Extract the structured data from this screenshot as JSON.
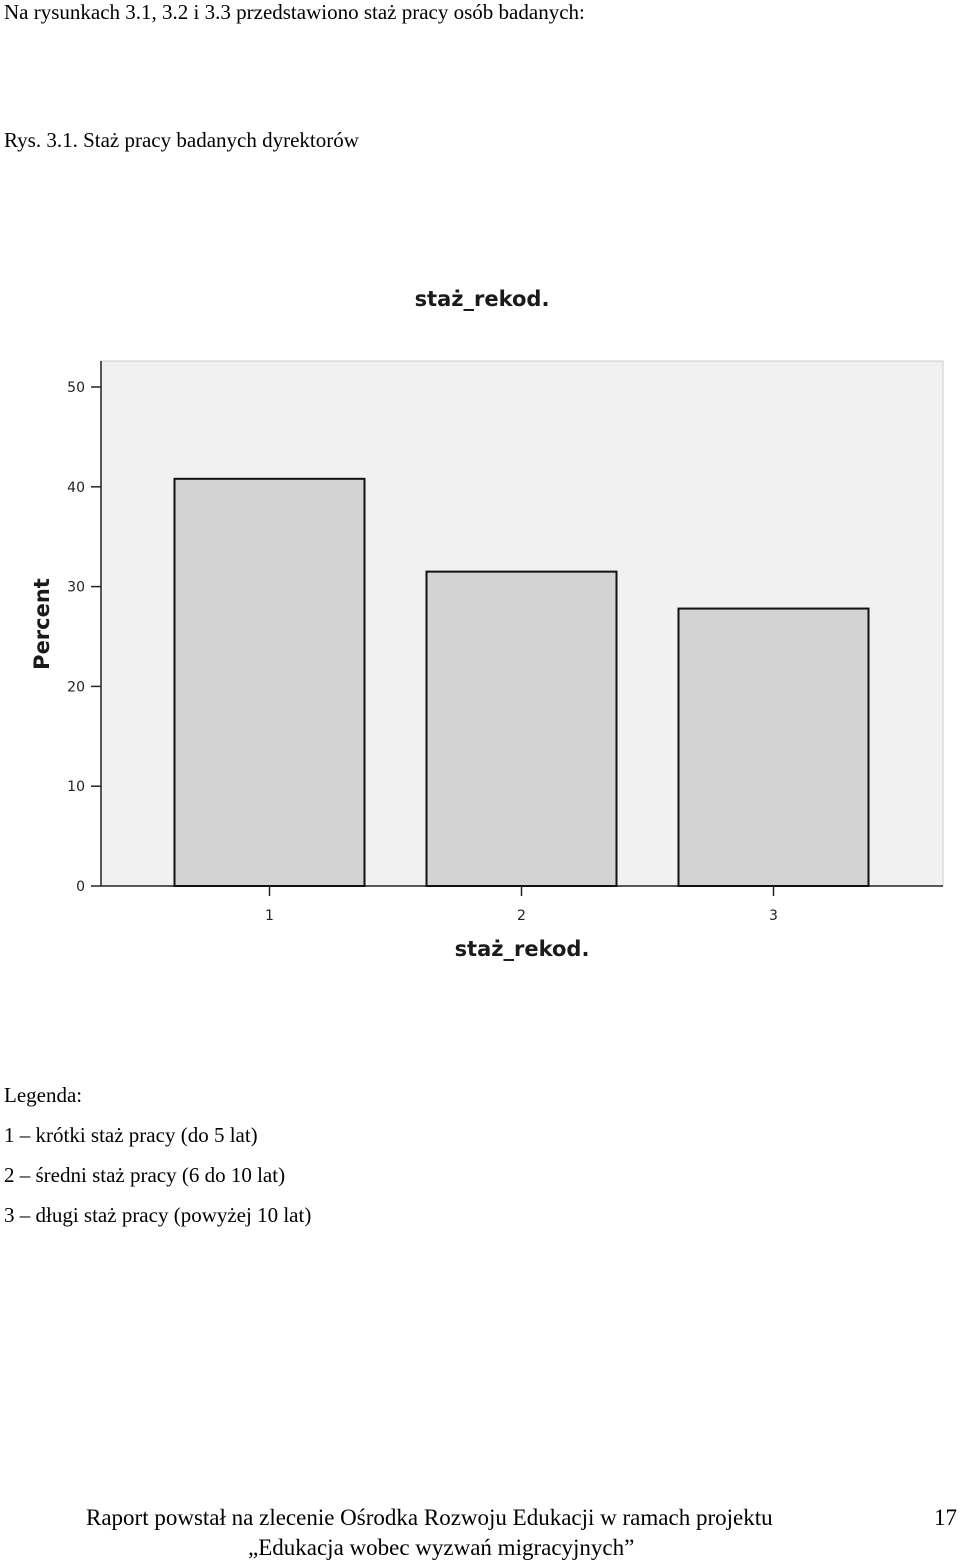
{
  "document": {
    "intro": "Na rysunkach 3.1, 3.2 i 3.3 przedstawiono staż pracy osób badanych:",
    "caption": "Rys. 3.1. Staż pracy badanych dyrektorów"
  },
  "chart_data": {
    "type": "bar",
    "title": "staż_rekod.",
    "xlabel": "staż_rekod.",
    "ylabel": "Percent",
    "categories": [
      "1",
      "2",
      "3"
    ],
    "values": [
      40.8,
      31.5,
      27.8
    ],
    "ylim": [
      0,
      50
    ],
    "yticks": [
      "0",
      "10",
      "20",
      "30",
      "40",
      "50"
    ],
    "grid": false,
    "colors": {
      "bar_fill": "#d3d3d3",
      "bar_stroke": "#111111",
      "plot_background": "#f1f1f1"
    }
  },
  "legend": {
    "title": "Legenda:",
    "items": [
      "1 – krótki staż pracy (do 5 lat)",
      "2 – średni staż pracy (6 do 10 lat)",
      "3 – długi staż pracy (powyżej 10 lat)"
    ]
  },
  "footer": {
    "line1": "Raport powstał na zlecenie Ośrodka Rozwoju Edukacji w ramach projektu",
    "line2": "„Edukacja wobec wyzwań migracyjnych”",
    "page_number": "17"
  }
}
